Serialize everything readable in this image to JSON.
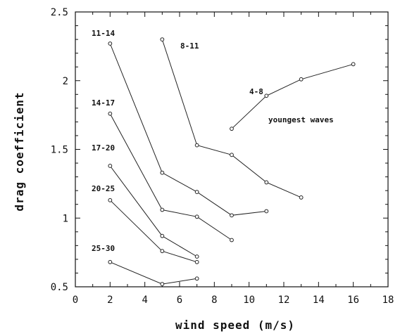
{
  "chart_data": {
    "type": "line",
    "xlabel": "wind speed (m/s)",
    "ylabel": "drag coefficient",
    "xlim": [
      0,
      18
    ],
    "ylim": [
      0.5,
      2.5
    ],
    "x_major_ticks": [
      "0",
      "2",
      "4",
      "6",
      "8",
      "10",
      "12",
      "14",
      "16",
      "18"
    ],
    "y_major_ticks": [
      "0.5",
      "1",
      "1.5",
      "2",
      "2.5"
    ],
    "grid": false,
    "series": [
      {
        "name": "11-14",
        "x": [
          2,
          5,
          7,
          9,
          11
        ],
        "y": [
          2.27,
          1.33,
          1.19,
          1.02,
          1.05
        ]
      },
      {
        "name": "8-11",
        "x": [
          5,
          7,
          9,
          11,
          13
        ],
        "y": [
          2.3,
          1.53,
          1.46,
          1.26,
          1.15
        ]
      },
      {
        "name": "4-8",
        "x": [
          9,
          11,
          13,
          16
        ],
        "y": [
          1.65,
          1.89,
          2.01,
          2.12
        ]
      },
      {
        "name": "14-17",
        "x": [
          2,
          5,
          7,
          9
        ],
        "y": [
          1.76,
          1.06,
          1.01,
          0.84
        ]
      },
      {
        "name": "17-20",
        "x": [
          2,
          5,
          7
        ],
        "y": [
          1.38,
          0.87,
          0.72
        ]
      },
      {
        "name": "20-25",
        "x": [
          2,
          5,
          7
        ],
        "y": [
          1.13,
          0.76,
          0.68
        ]
      },
      {
        "name": "25-30",
        "x": [
          2,
          5,
          7
        ],
        "y": [
          0.68,
          0.52,
          0.56
        ]
      }
    ],
    "annotations": [
      "youngest waves"
    ]
  }
}
